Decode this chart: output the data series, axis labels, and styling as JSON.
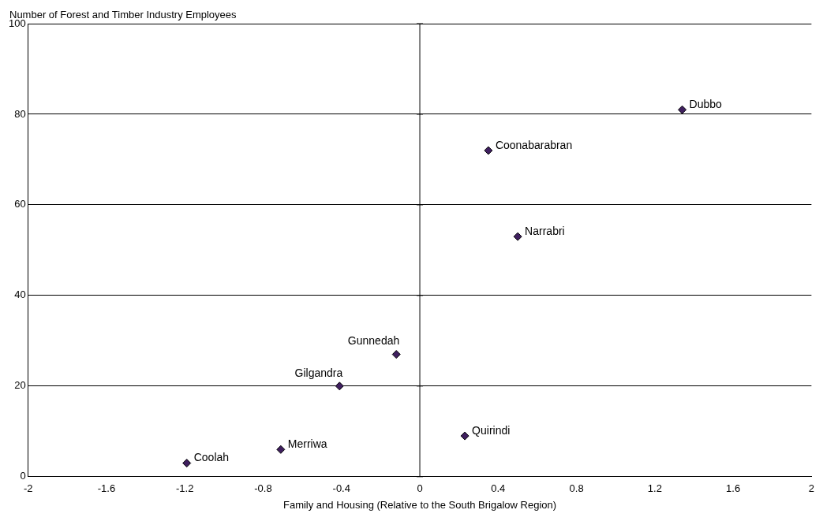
{
  "chart_data": {
    "type": "scatter",
    "ylabel": "Number of Forest and Timber Industry Employees",
    "xlabel": "Family and Housing (Relative to the South Brigalow Region)",
    "x": [
      1.34,
      0.35,
      0.5,
      -0.12,
      -0.41,
      0.23,
      -0.71,
      -1.19
    ],
    "values": [
      81,
      72,
      53,
      27,
      20,
      9,
      6,
      3
    ],
    "color": "#3f1f5f",
    "marker": "diamond",
    "annotations": [
      {
        "text": "Dubbo",
        "x": 1.34,
        "y": 81
      },
      {
        "text": "Coonabarabran",
        "x": 0.35,
        "y": 72
      },
      {
        "text": "Narrabri",
        "x": 0.5,
        "y": 53
      },
      {
        "text": "Gunnedah",
        "x": -0.12,
        "y": 27
      },
      {
        "text": "Gilgandra",
        "x": -0.41,
        "y": 20
      },
      {
        "text": "Quirindi",
        "x": 0.23,
        "y": 9
      },
      {
        "text": "Merriwa",
        "x": -0.71,
        "y": 6
      },
      {
        "text": "Coolah",
        "x": -1.19,
        "y": 3
      }
    ],
    "xlim": [
      -2,
      2
    ],
    "xticks": [
      -2,
      -1.6,
      -1.2,
      -0.8,
      -0.4,
      0,
      0.4,
      0.8,
      1.2,
      1.6,
      2
    ],
    "ylim": [
      0,
      100
    ],
    "yticks": [
      0,
      20,
      40,
      60,
      80,
      100
    ],
    "ref_lines": [
      {
        "axis": "x",
        "value": 0,
        "color": "#000000"
      }
    ],
    "grid": "y",
    "legend": false
  }
}
